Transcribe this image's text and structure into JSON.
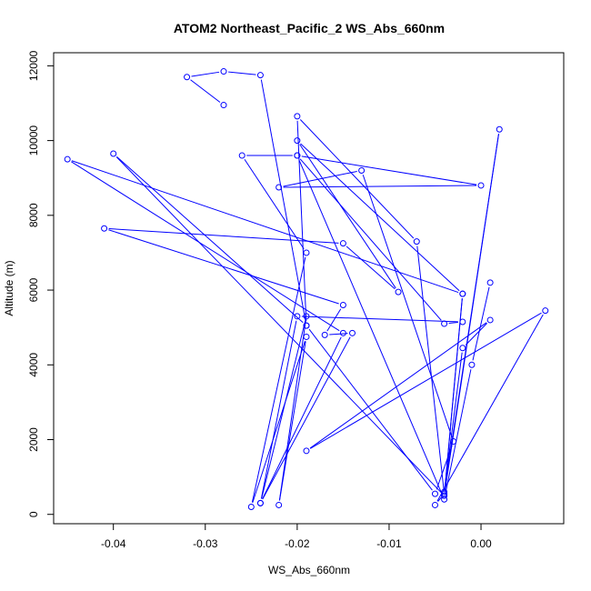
{
  "chart_data": {
    "type": "scatter",
    "title": "ATOM2 Northeast_Pacific_2 WS_Abs_660nm",
    "xlabel": "WS_Abs_660nm",
    "ylabel": "Altitude (m)",
    "xlim": [
      -0.0465,
      0.009
    ],
    "ylim": [
      -250,
      12350
    ],
    "x_ticks": [
      -0.04,
      -0.03,
      -0.02,
      -0.01,
      0.0
    ],
    "x_tick_labels": [
      "-0.04",
      "-0.03",
      "-0.02",
      "-0.01",
      "0.00"
    ],
    "y_ticks": [
      0,
      2000,
      4000,
      6000,
      8000,
      10000,
      12000
    ],
    "y_tick_labels": [
      "0",
      "2000",
      "4000",
      "6000",
      "8000",
      "10000",
      "12000"
    ],
    "grid": false,
    "connect_points": true,
    "series": [
      {
        "color": "#0000ff",
        "x": [
          -0.028,
          -0.032,
          -0.028,
          -0.024,
          -0.019,
          -0.02,
          -0.007,
          -0.004,
          -0.005,
          0.007,
          -0.019,
          0.001,
          -0.002,
          -0.004,
          0.002,
          -0.004,
          -0.002,
          -0.02,
          -0.009,
          -0.015,
          -0.041,
          -0.015,
          -0.017,
          -0.014,
          -0.024,
          -0.02,
          -0.002,
          -0.004,
          -0.02,
          -0.026,
          -0.019,
          -0.025,
          -0.019,
          -0.022,
          -0.019,
          -0.024,
          -0.015,
          -0.045,
          -0.002,
          -0.004,
          -0.04,
          -0.019,
          -0.005,
          -0.003,
          -0.013,
          -0.022,
          0.0,
          -0.02,
          -0.004,
          -0.001,
          0.001
        ],
        "y": [
          10950,
          11700,
          11850,
          11750,
          5050,
          10650,
          7300,
          550,
          250,
          5450,
          1700,
          5200,
          4450,
          600,
          10300,
          500,
          5900,
          10000,
          5950,
          7250,
          7650,
          5600,
          4800,
          4850,
          300,
          5300,
          5150,
          5100,
          9600,
          9600,
          7000,
          200,
          4750,
          250,
          5300,
          300,
          4850,
          9500,
          5900,
          500,
          9650,
          5050,
          550,
          1950,
          9200,
          8750,
          8800,
          9600,
          400,
          4000,
          6200
        ]
      }
    ]
  }
}
